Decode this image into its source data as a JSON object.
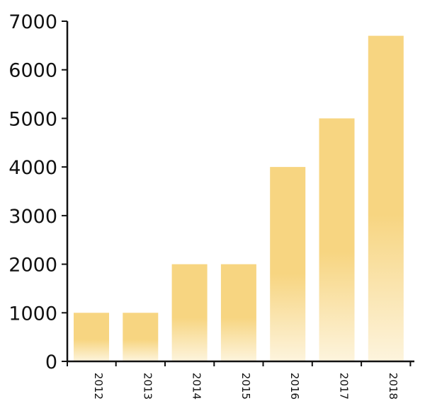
{
  "chart_data": {
    "type": "bar",
    "categories": [
      "2012",
      "2013",
      "2014",
      "2015",
      "2016",
      "2017",
      "2018"
    ],
    "values": [
      1000,
      1000,
      2000,
      2000,
      4000,
      5000,
      6700
    ],
    "y_ticks": [
      0,
      1000,
      2000,
      3000,
      4000,
      5000,
      6000,
      7000
    ],
    "ylim": [
      0,
      7000
    ],
    "title": "",
    "xlabel": "",
    "ylabel": "",
    "grid": false,
    "legend": "none",
    "bar_color_top": "#F7D581",
    "bar_color_bottom": "#FDF4DD",
    "axis_color": "#111111"
  }
}
